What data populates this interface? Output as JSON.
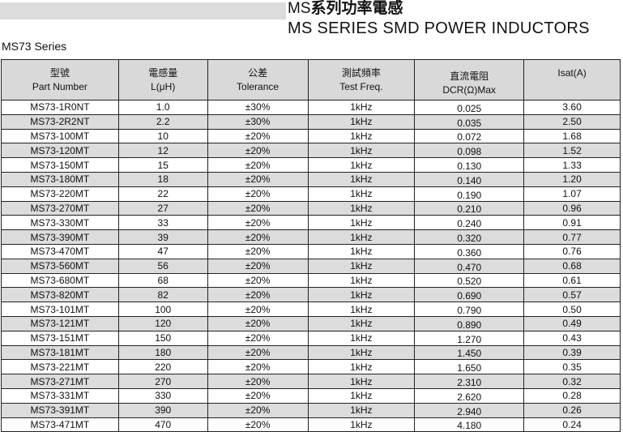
{
  "header": {
    "title_prefix": "MS",
    "title_cn": "系列功率電感",
    "title_en": "MS SERIES SMD POWER INDUCTORS",
    "series": "MS73  Series"
  },
  "table": {
    "columns": [
      {
        "cn": "型號",
        "en": "Part Number"
      },
      {
        "cn": "電感量",
        "en": "L(μH)"
      },
      {
        "cn": "公差",
        "en": "Tolerance"
      },
      {
        "cn": "測試頻率",
        "en": "Test Freq."
      },
      {
        "cn": "直流電阻",
        "en": "DCR(Ω)Max"
      },
      {
        "cn": "",
        "en": "Isat(A)"
      }
    ],
    "rows": [
      [
        "MS73-1R0NT",
        "1.0",
        "±30%",
        "1kHz",
        "0.025",
        "3.60"
      ],
      [
        "MS73-2R2NT",
        "2.2",
        "±30%",
        "1kHz",
        "0.035",
        "2.50"
      ],
      [
        "MS73-100MT",
        "10",
        "±20%",
        "1kHz",
        "0.072",
        "1.68"
      ],
      [
        "MS73-120MT",
        "12",
        "±20%",
        "1kHz",
        "0.098",
        "1.52"
      ],
      [
        "MS73-150MT",
        "15",
        "±20%",
        "1kHz",
        "0.130",
        "1.33"
      ],
      [
        "MS73-180MT",
        "18",
        "±20%",
        "1kHz",
        "0.140",
        "1.20"
      ],
      [
        "MS73-220MT",
        "22",
        "±20%",
        "1kHz",
        "0.190",
        "1.07"
      ],
      [
        "MS73-270MT",
        "27",
        "±20%",
        "1kHz",
        "0.210",
        "0.96"
      ],
      [
        "MS73-330MT",
        "33",
        "±20%",
        "1kHz",
        "0.240",
        "0.91"
      ],
      [
        "MS73-390MT",
        "39",
        "±20%",
        "1kHz",
        "0.320",
        "0.77"
      ],
      [
        "MS73-470MT",
        "47",
        "±20%",
        "1kHz",
        "0.360",
        "0.76"
      ],
      [
        "MS73-560MT",
        "56",
        "±20%",
        "1kHz",
        "0.470",
        "0.68"
      ],
      [
        "MS73-680MT",
        "68",
        "±20%",
        "1kHz",
        "0.520",
        "0.61"
      ],
      [
        "MS73-820MT",
        "82",
        "±20%",
        "1kHz",
        "0.690",
        "0.57"
      ],
      [
        "MS73-101MT",
        "100",
        "±20%",
        "1kHz",
        "0.790",
        "0.50"
      ],
      [
        "MS73-121MT",
        "120",
        "±20%",
        "1kHz",
        "0.890",
        "0.49"
      ],
      [
        "MS73-151MT",
        "150",
        "±20%",
        "1kHz",
        "1.270",
        "0.43"
      ],
      [
        "MS73-181MT",
        "180",
        "±20%",
        "1kHz",
        "1.450",
        "0.39"
      ],
      [
        "MS73-221MT",
        "220",
        "±20%",
        "1kHz",
        "1.650",
        "0.35"
      ],
      [
        "MS73-271MT",
        "270",
        "±20%",
        "1kHz",
        "2.310",
        "0.32"
      ],
      [
        "MS73-331MT",
        "330",
        "±20%",
        "1kHz",
        "2.620",
        "0.28"
      ],
      [
        "MS73-391MT",
        "390",
        "±20%",
        "1kHz",
        "2.940",
        "0.26"
      ],
      [
        "MS73-471MT",
        "470",
        "±20%",
        "1kHz",
        "4.180",
        "0.24"
      ]
    ]
  }
}
